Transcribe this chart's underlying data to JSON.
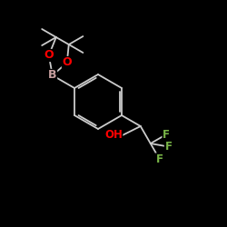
{
  "bg_color": "#000000",
  "atom_colors": {
    "O": "#ff0000",
    "B": "#c8a0a0",
    "F": "#7ab648",
    "OH": "#ff0000"
  },
  "figsize": [
    2.5,
    2.5
  ],
  "dpi": 100
}
